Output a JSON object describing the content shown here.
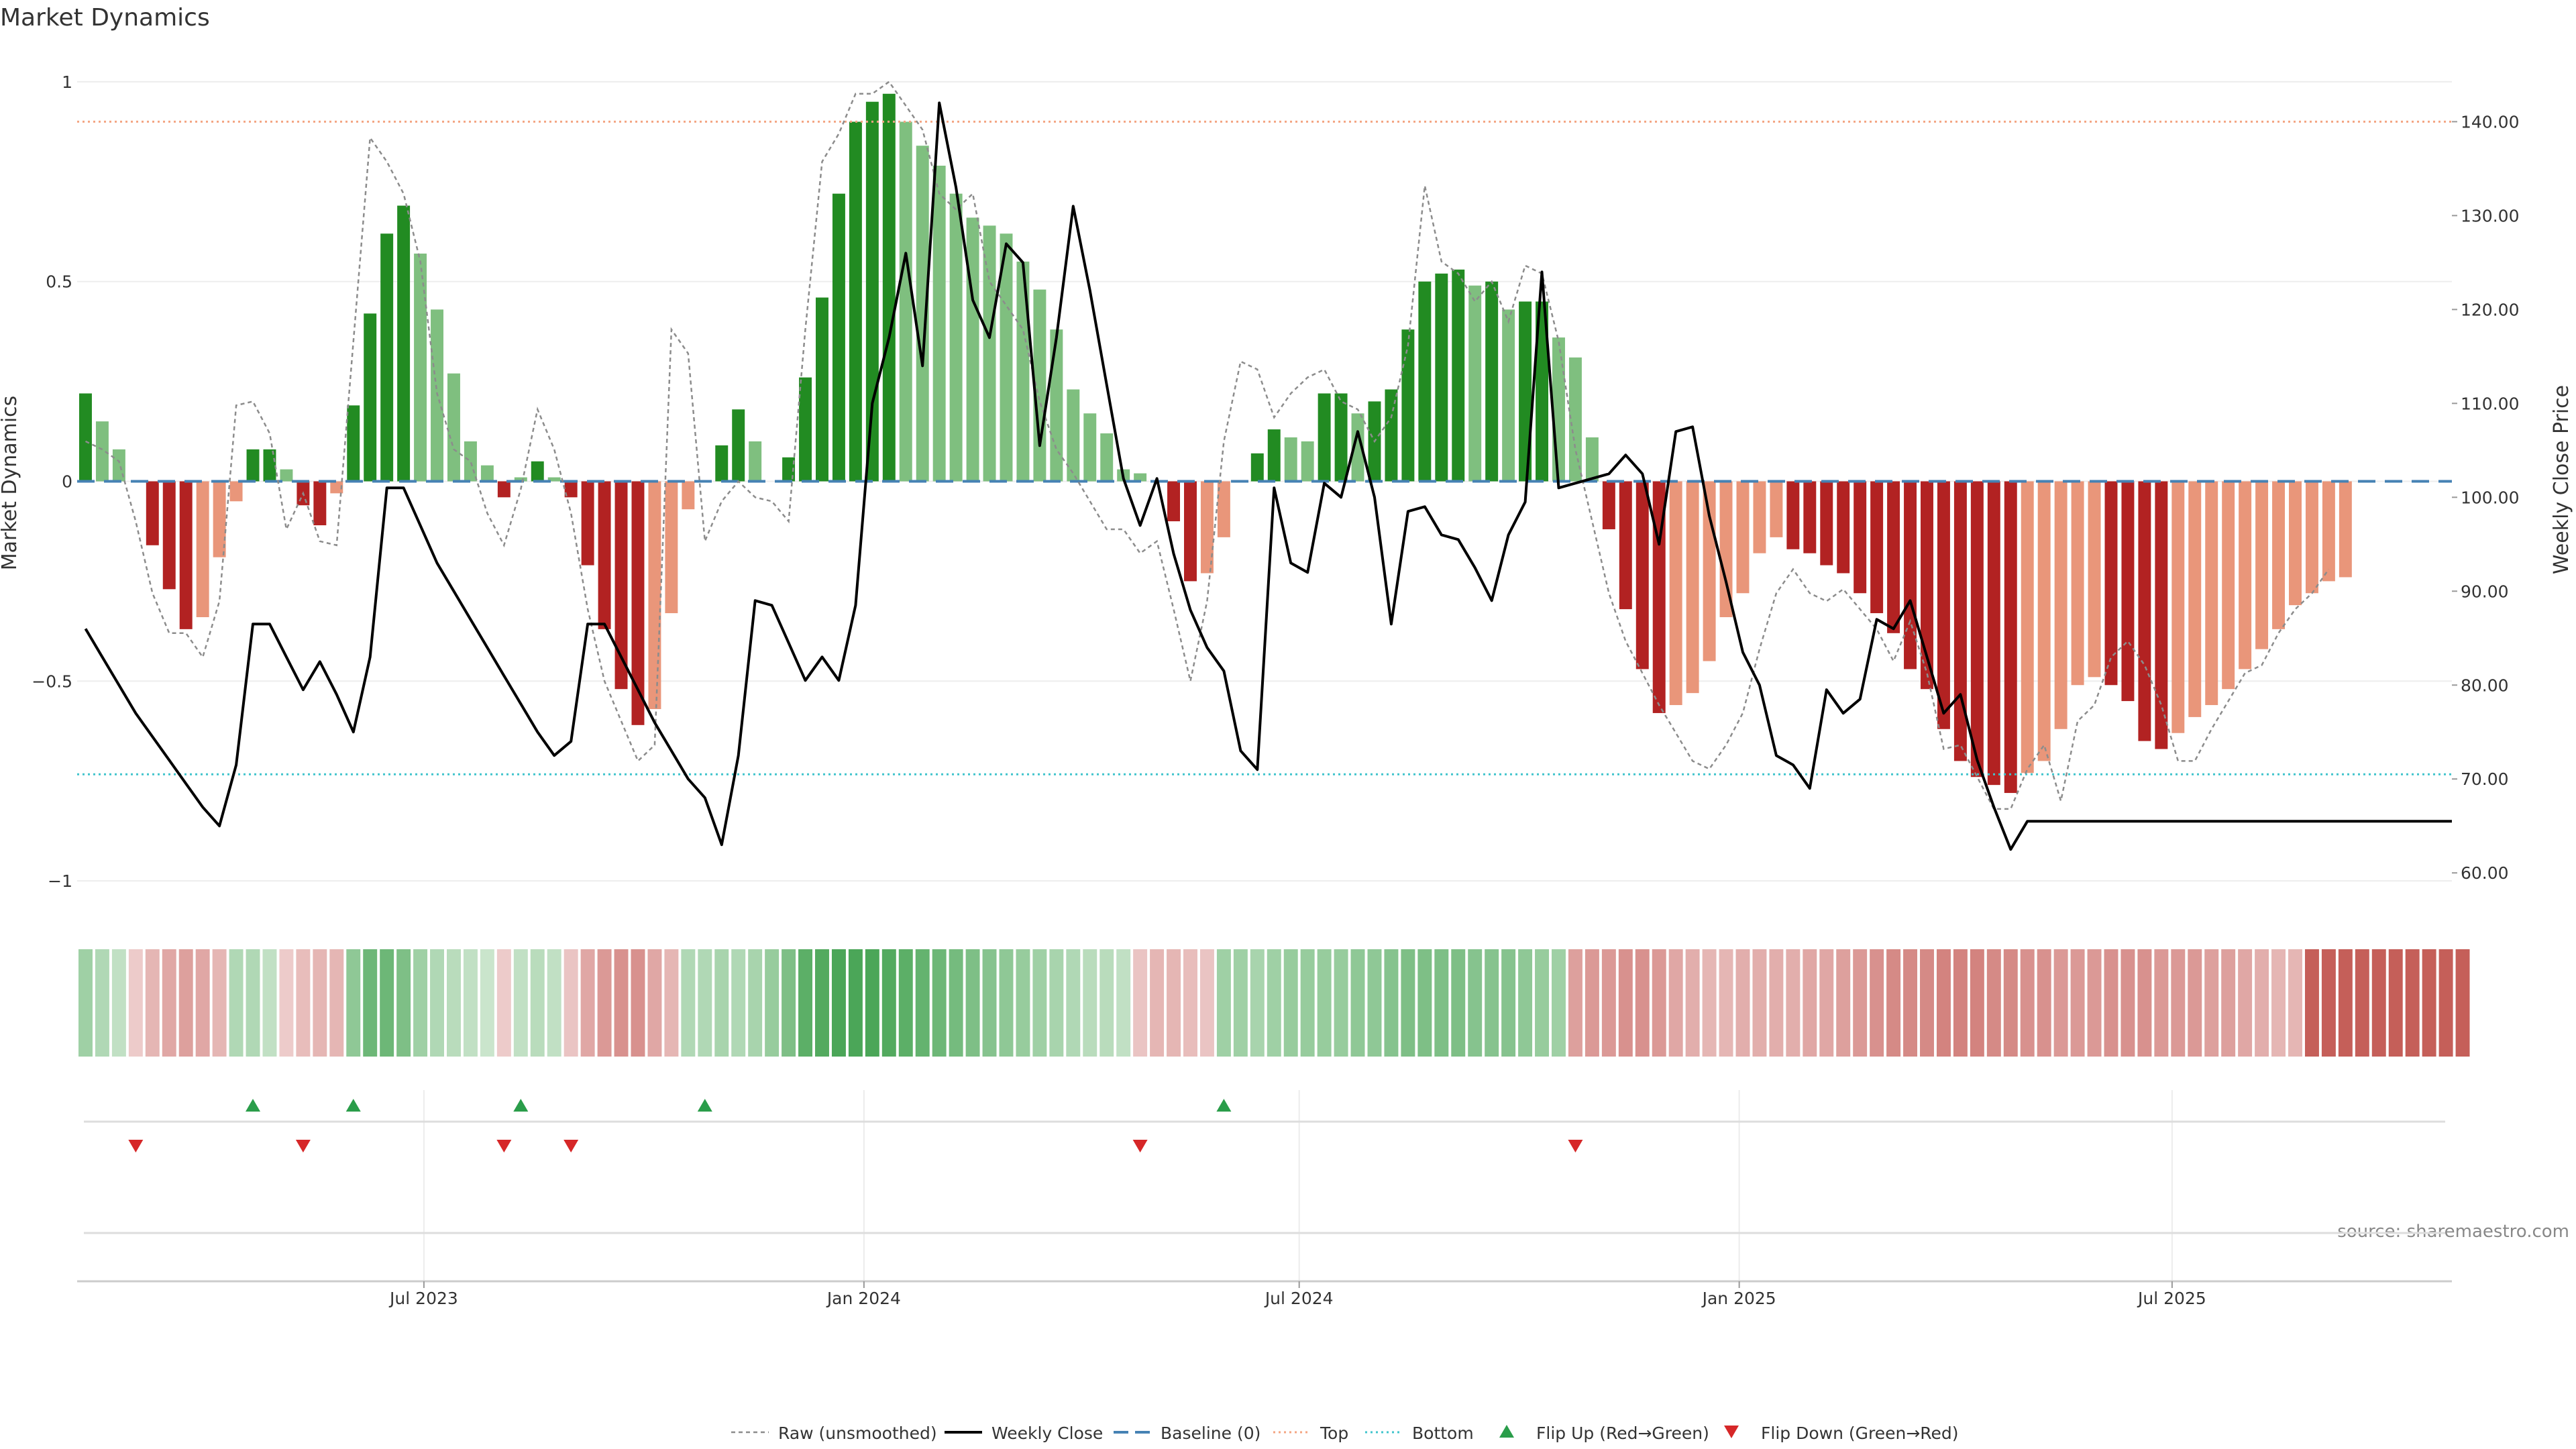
{
  "chart_data": {
    "type": "bar",
    "title": "Market Dynamics",
    "ylabel_left": "Market Dynamics",
    "ylabel_right": "Weekly Close Price",
    "source": "source: sharemaestro.com",
    "x_ticks": [
      "Jul 2023",
      "Jan 2024",
      "Jul 2024",
      "Jan 2025",
      "Jul 2025"
    ],
    "x_tick_dates": [
      "2023-07-01",
      "2024-01-01",
      "2024-07-01",
      "2025-01-01",
      "2025-07-01"
    ],
    "x_range": [
      "2023-02-06",
      "2025-10-26"
    ],
    "ylim_left": [
      -1.02,
      1.02
    ],
    "yticks_left": [
      "1",
      "0.5",
      "0",
      "−0.5",
      "−1"
    ],
    "yticks_left_values": [
      1,
      0.5,
      0,
      -0.5,
      -1
    ],
    "ylim_right": [
      58.3,
      145.1
    ],
    "yticks_right": [
      "60.00",
      "70.00",
      "80.00",
      "90.00",
      "100.00",
      "110.00",
      "120.00",
      "130.00",
      "140.00"
    ],
    "yticks_right_values": [
      60,
      70,
      80,
      90,
      100,
      110,
      120,
      130,
      140
    ],
    "top_line": 140,
    "bottom_line": 70.5,
    "baseline": 0,
    "week_start": "2023-02-06",
    "dynamics": [
      0.22,
      0.15,
      0.08,
      0,
      -0.16,
      -0.27,
      -0.37,
      -0.34,
      -0.19,
      -0.05,
      0.08,
      0.08,
      0.03,
      -0.06,
      -0.11,
      -0.03,
      0.19,
      0.42,
      0.62,
      0.69,
      0.57,
      0.43,
      0.27,
      0.1,
      0.04,
      -0.04,
      0.01,
      0.05,
      0.01,
      -0.04,
      -0.21,
      -0.37,
      -0.52,
      -0.61,
      -0.57,
      -0.33,
      -0.07,
      0,
      0.09,
      0.18,
      0.1,
      0,
      0.06,
      0.26,
      0.46,
      0.72,
      0.9,
      0.95,
      0.97,
      0.9,
      0.84,
      0.79,
      0.72,
      0.66,
      0.64,
      0.62,
      0.55,
      0.48,
      0.38,
      0.23,
      0.17,
      0.12,
      0.03,
      0.02,
      0,
      -0.1,
      -0.25,
      -0.23,
      -0.14,
      0,
      0.07,
      0.13,
      0.11,
      0.1,
      0.22,
      0.22,
      0.17,
      0.2,
      0.23,
      0.38,
      0.5,
      0.52,
      0.53,
      0.49,
      0.5,
      0.43,
      0.45,
      0.45,
      0.36,
      0.31,
      0.11,
      -0.12,
      -0.32,
      -0.47,
      -0.58,
      -0.56,
      -0.53,
      -0.45,
      -0.34,
      -0.28,
      -0.18,
      -0.14,
      -0.17,
      -0.18,
      -0.21,
      -0.23,
      -0.28,
      -0.33,
      -0.38,
      -0.47,
      -0.52,
      -0.62,
      -0.7,
      -0.74,
      -0.76,
      -0.78,
      -0.73,
      -0.7,
      -0.62,
      -0.51,
      -0.49,
      -0.51,
      -0.55,
      -0.65,
      -0.67,
      -0.63,
      -0.59,
      -0.56,
      -0.52,
      -0.47,
      -0.42,
      -0.37,
      -0.31,
      -0.28,
      -0.25,
      -0.24
    ],
    "raw_unsmoothed": [
      0.1,
      0.08,
      0.05,
      -0.1,
      -0.28,
      -0.38,
      -0.38,
      -0.44,
      -0.3,
      0.19,
      0.2,
      0.12,
      -0.12,
      -0.03,
      -0.15,
      -0.16,
      0.35,
      0.86,
      0.8,
      0.72,
      0.55,
      0.22,
      0.08,
      0.05,
      -0.08,
      -0.16,
      -0.02,
      0.18,
      0.08,
      -0.08,
      -0.32,
      -0.5,
      -0.6,
      -0.7,
      -0.66,
      0.38,
      0.32,
      -0.15,
      -0.05,
      0,
      -0.04,
      -0.05,
      -0.1,
      0.38,
      0.8,
      0.87,
      0.97,
      0.97,
      1,
      0.94,
      0.88,
      0.72,
      0.68,
      0.72,
      0.5,
      0.44,
      0.38,
      0.2,
      0.08,
      0.02,
      -0.05,
      -0.12,
      -0.12,
      -0.18,
      -0.15,
      -0.32,
      -0.5,
      -0.3,
      0.1,
      0.3,
      0.28,
      0.16,
      0.22,
      0.26,
      0.28,
      0.2,
      0.18,
      0.1,
      0.16,
      0.34,
      0.74,
      0.55,
      0.52,
      0.45,
      0.5,
      0.4,
      0.54,
      0.52,
      0.35,
      0.08,
      -0.1,
      -0.28,
      -0.4,
      -0.48,
      -0.56,
      -0.63,
      -0.7,
      -0.72,
      -0.66,
      -0.58,
      -0.42,
      -0.28,
      -0.22,
      -0.28,
      -0.3,
      -0.27,
      -0.32,
      -0.37,
      -0.45,
      -0.35,
      -0.48,
      -0.67,
      -0.66,
      -0.74,
      -0.82,
      -0.82,
      -0.72,
      -0.66,
      -0.8,
      -0.6,
      -0.56,
      -0.44,
      -0.4,
      -0.46,
      -0.56,
      -0.7,
      -0.7,
      -0.62,
      -0.55,
      -0.48,
      -0.46,
      -0.38,
      -0.32,
      -0.28,
      -0.22
    ],
    "weekly_close": [
      86,
      83,
      80,
      77,
      74.5,
      72,
      69.5,
      67,
      65,
      71.5,
      86.5,
      86.5,
      83,
      79.5,
      82.5,
      79,
      75,
      83,
      101,
      101,
      97,
      93,
      90,
      87,
      84,
      81,
      78,
      75,
      72.5,
      74,
      86.5,
      86.5,
      83,
      79.5,
      76,
      73,
      70,
      68,
      63,
      72.5,
      89,
      88.5,
      84.5,
      80.5,
      83,
      80.5,
      88.5,
      110,
      117,
      126,
      114,
      142,
      133,
      121,
      117,
      127,
      125,
      105.5,
      117,
      131,
      122,
      112,
      102,
      97,
      102,
      94,
      88,
      84,
      81.5,
      73,
      71,
      101,
      93,
      92,
      101.5,
      100,
      107,
      100,
      86.5,
      98.5,
      99,
      96,
      95.5,
      92.5,
      89,
      96,
      99.5,
      124,
      101,
      101.5,
      102,
      102.5,
      104.5,
      102.5,
      95,
      107,
      107.5,
      98,
      91,
      83.5,
      80,
      72.5,
      71.5,
      69,
      79.5,
      77,
      78.5,
      87,
      86,
      89,
      83,
      77,
      79,
      72,
      67,
      62.5,
      65.5,
      65.5
    ],
    "regime_strip": [
      0.4,
      0.3,
      0.2,
      -0.15,
      -0.3,
      -0.4,
      -0.45,
      -0.4,
      -0.3,
      0.3,
      0.3,
      0.2,
      -0.15,
      -0.25,
      -0.3,
      -0.3,
      0.5,
      0.7,
      0.7,
      0.6,
      0.4,
      0.3,
      0.25,
      0.2,
      0.15,
      -0.15,
      0.2,
      0.25,
      0.2,
      -0.2,
      -0.4,
      -0.5,
      -0.55,
      -0.55,
      -0.4,
      -0.3,
      0.3,
      0.3,
      0.35,
      0.3,
      0.35,
      0.45,
      0.6,
      0.8,
      0.85,
      0.9,
      0.9,
      0.9,
      0.85,
      0.8,
      0.75,
      0.7,
      0.65,
      0.6,
      0.55,
      0.5,
      0.45,
      0.4,
      0.35,
      0.3,
      0.25,
      0.25,
      0.2,
      -0.2,
      -0.3,
      -0.3,
      -0.25,
      -0.2,
      0.4,
      0.4,
      0.35,
      0.4,
      0.45,
      0.45,
      0.45,
      0.45,
      0.5,
      0.5,
      0.55,
      0.6,
      0.6,
      0.6,
      0.6,
      0.55,
      0.55,
      0.55,
      0.5,
      0.45,
      0.4,
      -0.45,
      -0.5,
      -0.5,
      -0.55,
      -0.55,
      -0.5,
      -0.4,
      -0.35,
      -0.3,
      -0.3,
      -0.35,
      -0.35,
      -0.35,
      -0.35,
      -0.4,
      -0.4,
      -0.45,
      -0.5,
      -0.55,
      -0.6,
      -0.6,
      -0.6,
      -0.65,
      -0.65,
      -0.65,
      -0.6,
      -0.6,
      -0.55,
      -0.55,
      -0.5,
      -0.5,
      -0.5,
      -0.55,
      -0.55,
      -0.55,
      -0.5,
      -0.5,
      -0.5,
      -0.45,
      -0.45,
      -0.4,
      -0.35,
      -0.3,
      -0.3,
      -0.9,
      -0.9,
      -0.9,
      -0.9,
      -0.9,
      -0.9,
      -0.9,
      -0.9,
      -0.9,
      -0.9
    ],
    "flip_up_weeks": [
      10,
      16,
      26,
      37,
      68
    ],
    "flip_down_weeks": [
      3,
      13,
      25,
      29,
      63,
      89
    ],
    "legend": [
      "Raw (unsmoothed)",
      "Weekly Close",
      "Baseline (0)",
      "Top",
      "Bottom",
      "Flip Up (Red→Green)",
      "Flip Down (Green→Red)"
    ],
    "colors": {
      "green_strong": "#228b22",
      "green_light": "#7fbf7f",
      "red_strong": "#b22222",
      "red_light": "#e9967a",
      "raw": "#8c8c8c",
      "close": "#000000",
      "baseline": "#4682b4",
      "top": "#f4a582",
      "bottom": "#40c4cc",
      "flip_up": "#2a9d4a",
      "flip_down": "#d62728"
    },
    "legend_position": "bottom-center",
    "grid": true
  }
}
